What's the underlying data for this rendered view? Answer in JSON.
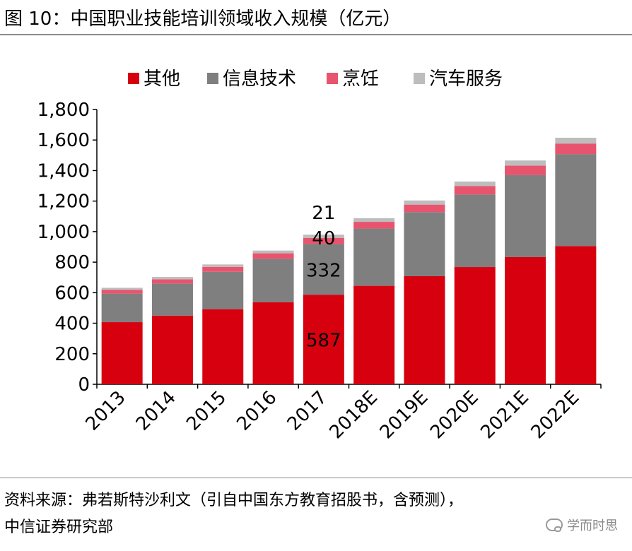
{
  "title": "图 10：中国职业技能培训领域收入规模（亿元）",
  "source_lines": [
    "资料来源：弗若斯特沙利文（引自中国东方教育招股书，含预测），",
    "中信证券研究部"
  ],
  "watermark": "学而时思",
  "chart_data": {
    "type": "bar",
    "stacked": true,
    "categories": [
      "2013",
      "2014",
      "2015",
      "2016",
      "2017",
      "2018E",
      "2019E",
      "2020E",
      "2021E",
      "2022E"
    ],
    "series": [
      {
        "name": "其他",
        "color": "#d7000f",
        "values": [
          407,
          450,
          492,
          537,
          587,
          645,
          708,
          768,
          833,
          905
        ]
      },
      {
        "name": "信息技术",
        "color": "#7f7f7f",
        "values": [
          187,
          210,
          245,
          285,
          332,
          375,
          420,
          475,
          537,
          603
        ]
      },
      {
        "name": "烹饪",
        "color": "#e8546e",
        "values": [
          25,
          28,
          32,
          36,
          40,
          44,
          49,
          55,
          62,
          69
        ]
      },
      {
        "name": "汽车服务",
        "color": "#bdbdbd",
        "values": [
          13,
          15,
          16,
          18,
          21,
          24,
          27,
          30,
          34,
          38
        ]
      }
    ],
    "data_labels": [
      {
        "category": "2017",
        "series": "其他",
        "text": "587"
      },
      {
        "category": "2017",
        "series": "信息技术",
        "text": "332"
      },
      {
        "category": "2017",
        "series": "烹饪",
        "text": "40"
      },
      {
        "category": "2017",
        "series": "汽车服务",
        "text": "21"
      }
    ],
    "ylim": [
      0,
      1800
    ],
    "yticks": [
      0,
      200,
      400,
      600,
      800,
      1000,
      1200,
      1400,
      1600,
      1800
    ],
    "ytick_labels": [
      "0",
      "200",
      "400",
      "600",
      "800",
      "1,000",
      "1,200",
      "1,400",
      "1,600",
      "1,800"
    ],
    "grid": false,
    "legend_position": "top"
  }
}
